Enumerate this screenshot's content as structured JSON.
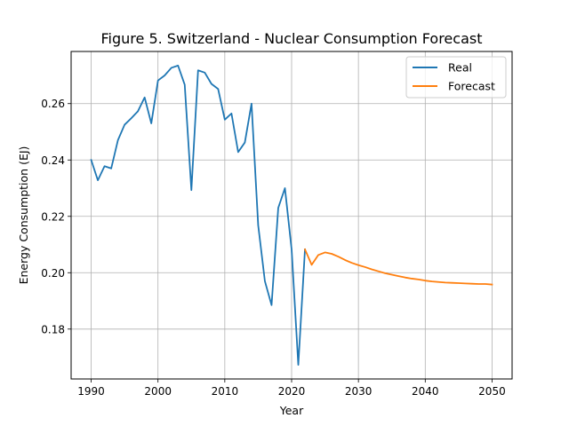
{
  "chart_data": {
    "type": "line",
    "title": "Figure 5. Switzerland - Nuclear Consumption Forecast",
    "xlabel": "Year",
    "ylabel": "Energy Consumption (EJ)",
    "xlim": [
      1987,
      2053
    ],
    "ylim": [
      0.1623,
      0.2785
    ],
    "xticks": [
      1990,
      2000,
      2010,
      2020,
      2030,
      2040,
      2050
    ],
    "yticks": [
      0.18,
      0.2,
      0.22,
      0.24,
      0.26
    ],
    "ytick_labels": [
      "0.18",
      "0.20",
      "0.22",
      "0.24",
      "0.26"
    ],
    "grid": true,
    "legend_position": "top-right",
    "series": [
      {
        "name": "Real",
        "color": "#1f77b4",
        "x": [
          1990,
          1991,
          1992,
          1993,
          1994,
          1995,
          1996,
          1997,
          1998,
          1999,
          2000,
          2001,
          2002,
          2003,
          2004,
          2005,
          2006,
          2007,
          2008,
          2009,
          2010,
          2011,
          2012,
          2013,
          2014,
          2015,
          2016,
          2017,
          2018,
          2019,
          2020,
          2021,
          2022
        ],
        "y": [
          0.24,
          0.2328,
          0.2378,
          0.237,
          0.247,
          0.2525,
          0.2548,
          0.2573,
          0.2622,
          0.253,
          0.2682,
          0.27,
          0.2727,
          0.2735,
          0.2667,
          0.2293,
          0.2718,
          0.271,
          0.267,
          0.2652,
          0.2543,
          0.2565,
          0.2428,
          0.2462,
          0.26,
          0.2168,
          0.197,
          0.1885,
          0.223,
          0.23,
          0.2083,
          0.1673,
          0.2083
        ]
      },
      {
        "name": "Forecast",
        "color": "#ff7f0e",
        "x": [
          2022,
          2023,
          2024,
          2025,
          2026,
          2027,
          2028,
          2029,
          2030,
          2031,
          2032,
          2033,
          2034,
          2035,
          2036,
          2037,
          2038,
          2039,
          2040,
          2041,
          2042,
          2043,
          2044,
          2045,
          2046,
          2047,
          2048,
          2049,
          2050
        ],
        "y": [
          0.2083,
          0.2028,
          0.2063,
          0.2072,
          0.2067,
          0.2057,
          0.2045,
          0.2035,
          0.2027,
          0.202,
          0.2012,
          0.2005,
          0.1998,
          0.1993,
          0.1988,
          0.1983,
          0.1979,
          0.1976,
          0.1972,
          0.1969,
          0.1967,
          0.1965,
          0.1964,
          0.1963,
          0.1962,
          0.1961,
          0.196,
          0.196,
          0.1958
        ]
      }
    ]
  }
}
